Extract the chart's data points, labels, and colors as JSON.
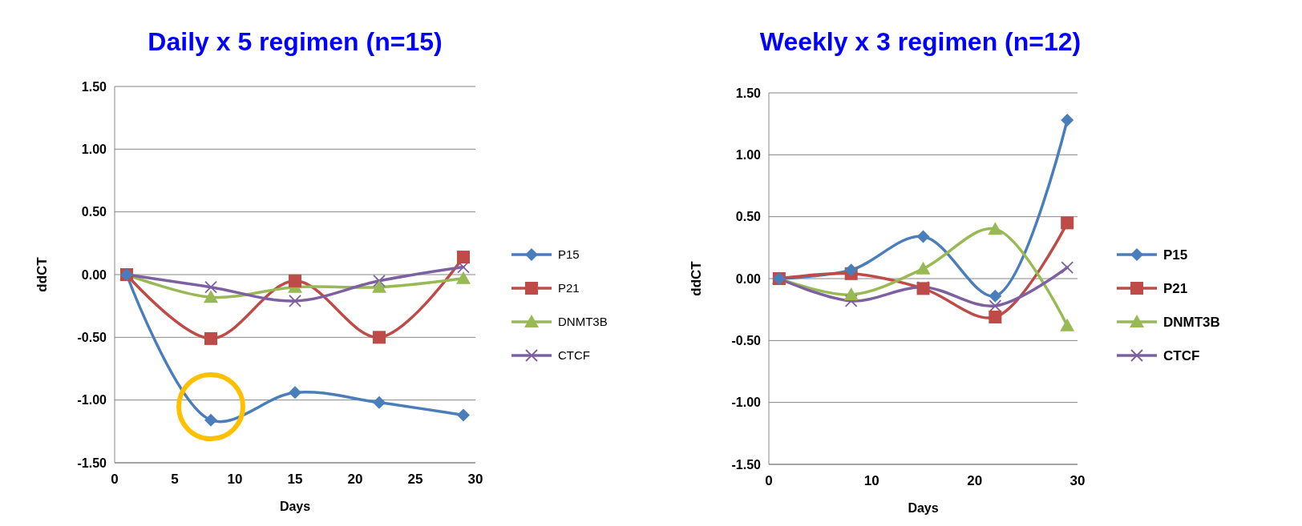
{
  "chart_data": [
    {
      "type": "line",
      "title": "Daily x 5 regimen (n=15)",
      "xlabel": "Days",
      "ylabel": "ddCT",
      "x": [
        1,
        8,
        15,
        22,
        29
      ],
      "xlim": [
        0,
        30
      ],
      "xticks": [
        0,
        5,
        10,
        15,
        20,
        25,
        30
      ],
      "ylim": [
        -1.5,
        1.5
      ],
      "yticks": [
        {
          "value": -1.5,
          "label": "-1.50"
        },
        {
          "value": -1,
          "label": "-1.00"
        },
        {
          "value": -0.5,
          "label": "-0.50"
        },
        {
          "value": 0,
          "label": "0.00"
        },
        {
          "value": 0.5,
          "label": "0.50"
        },
        {
          "value": 1,
          "label": "1.00"
        },
        {
          "value": 1.5,
          "label": "1.50"
        }
      ],
      "grid": "y",
      "legend": "right",
      "series": [
        {
          "name": "P15",
          "color": "#4a7ebb",
          "marker": "diamond",
          "values": [
            0,
            -1.16,
            -0.94,
            -1.02,
            -1.12
          ]
        },
        {
          "name": "P21",
          "color": "#be4b48",
          "marker": "square",
          "values": [
            0,
            -0.51,
            -0.05,
            -0.5,
            0.14
          ]
        },
        {
          "name": "DNMT3B",
          "color": "#98b954",
          "marker": "triangle",
          "values": [
            0,
            -0.18,
            -0.1,
            -0.1,
            -0.03
          ]
        },
        {
          "name": "CTCF",
          "color": "#7d60a0",
          "marker": "cross",
          "values": [
            0,
            -0.1,
            -0.21,
            -0.05,
            0.06
          ]
        }
      ]
    },
    {
      "type": "line",
      "title": "Weekly x 3 regimen (n=12)",
      "xlabel": "Days",
      "ylabel": "ddCT",
      "x": [
        1,
        8,
        15,
        22,
        29
      ],
      "xlim": [
        0,
        30
      ],
      "xticks": [
        0,
        10,
        20,
        30
      ],
      "ylim": [
        -1.5,
        1.5
      ],
      "yticks": [
        {
          "value": -1.5,
          "label": "-1.50"
        },
        {
          "value": -1,
          "label": "-1.00"
        },
        {
          "value": -0.5,
          "label": "-0.50"
        },
        {
          "value": 0,
          "label": "0.00"
        },
        {
          "value": 0.5,
          "label": "0.50"
        },
        {
          "value": 1,
          "label": "1.00"
        },
        {
          "value": 1.5,
          "label": "1.50"
        }
      ],
      "grid": "y",
      "legend": "right",
      "series": [
        {
          "name": "P15",
          "color": "#4a7ebb",
          "marker": "diamond",
          "values": [
            0,
            0.07,
            0.34,
            -0.14,
            1.28
          ]
        },
        {
          "name": "P21",
          "color": "#be4b48",
          "marker": "square",
          "values": [
            0,
            0.04,
            -0.08,
            -0.31,
            0.45
          ]
        },
        {
          "name": "DNMT3B",
          "color": "#98b954",
          "marker": "triangle",
          "values": [
            0,
            -0.13,
            0.08,
            0.4,
            -0.38
          ]
        },
        {
          "name": "CTCF",
          "color": "#7d60a0",
          "marker": "cross",
          "values": [
            0,
            -0.18,
            -0.07,
            -0.22,
            0.09
          ]
        }
      ]
    }
  ]
}
